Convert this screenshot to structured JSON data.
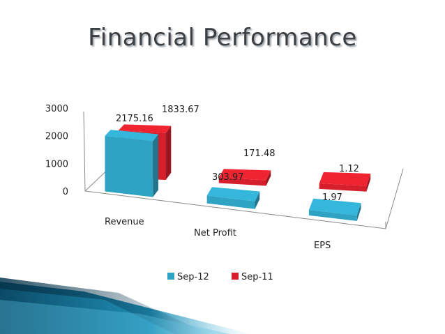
{
  "title": "Financial Performance",
  "chart_data": {
    "type": "bar",
    "title": "Financial Performance",
    "categories": [
      "Revenue",
      "Net Profit",
      "EPS"
    ],
    "series": [
      {
        "name": "Sep-12",
        "values": [
          2175.16,
          303.97,
          1.97
        ],
        "color": "#2fa3c4"
      },
      {
        "name": "Sep-11",
        "values": [
          1833.67,
          171.48,
          1.12
        ],
        "color": "#d61f2c"
      }
    ],
    "yticks": [
      "0",
      "1000",
      "2000",
      "3000"
    ],
    "ylim": [
      0,
      3000
    ],
    "legend_position": "bottom",
    "three_d": true
  }
}
